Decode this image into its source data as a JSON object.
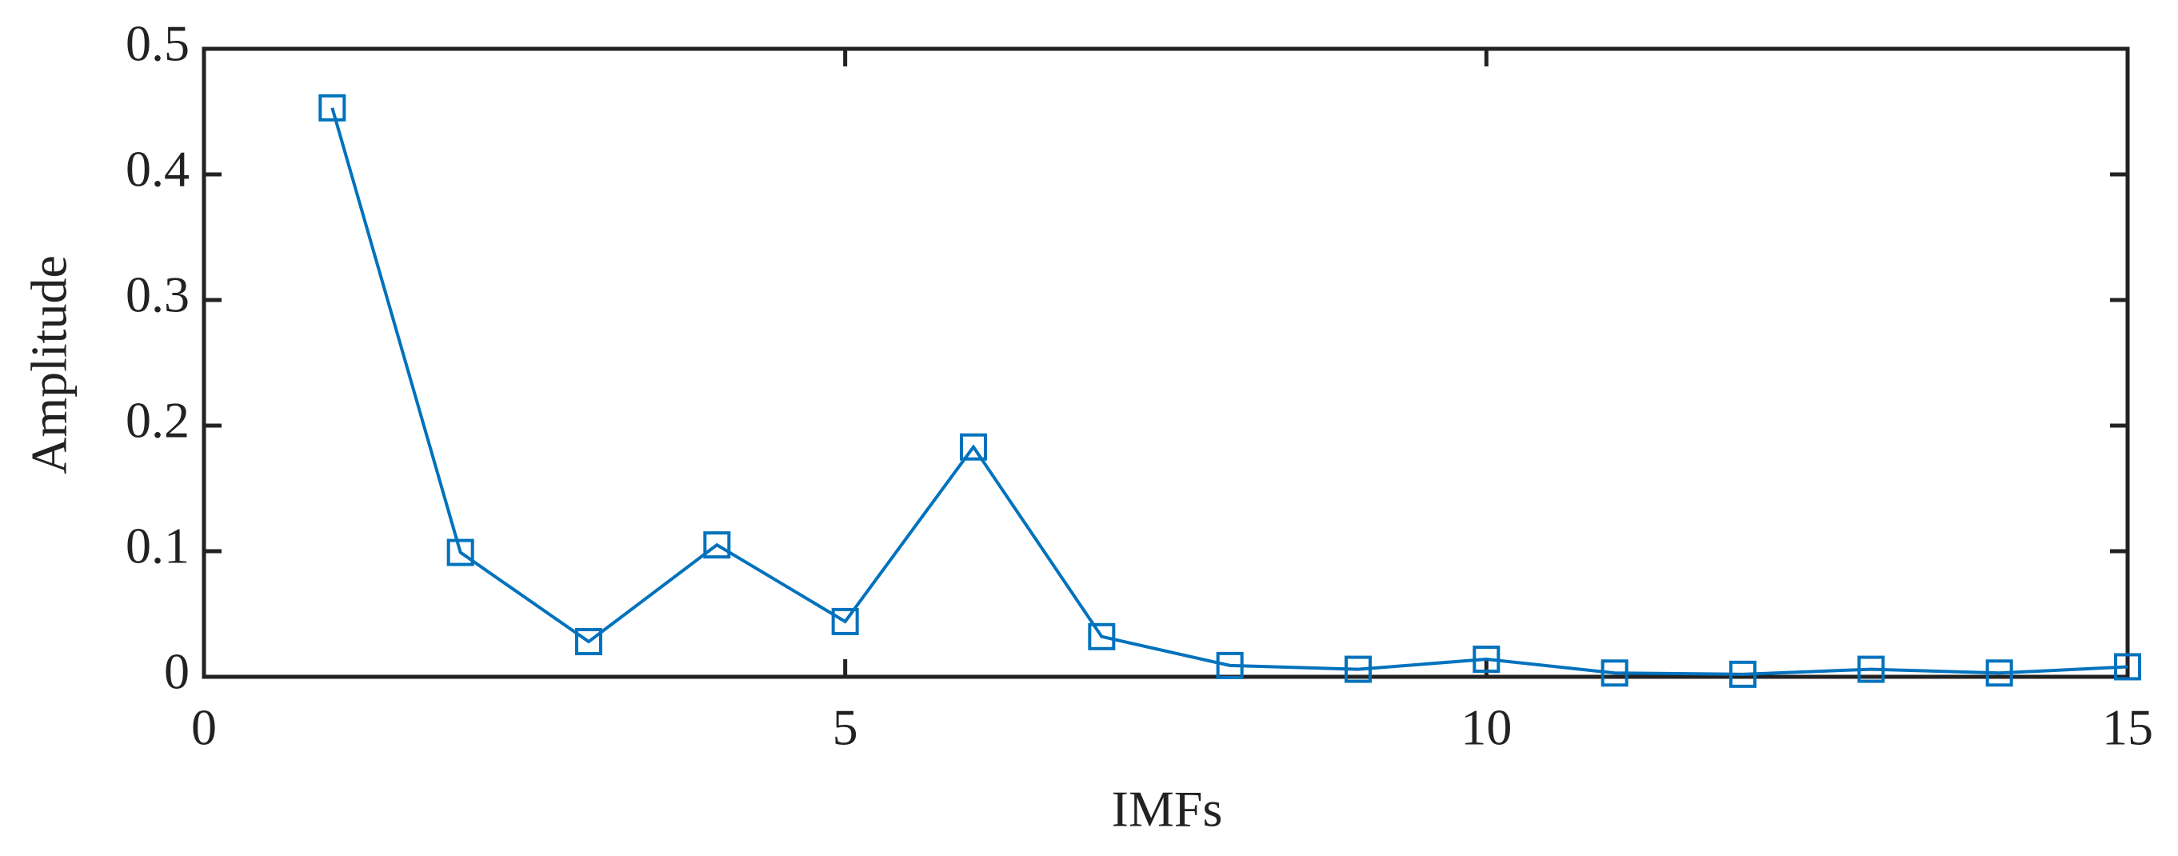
{
  "chart_data": {
    "type": "line",
    "x_label": "IMFs",
    "y_label": "Amplitude",
    "x": [
      1,
      2,
      3,
      4,
      5,
      6,
      7,
      8,
      9,
      10,
      11,
      12,
      13,
      14,
      15
    ],
    "values": [
      0.453,
      0.099,
      0.028,
      0.105,
      0.044,
      0.183,
      0.032,
      0.009,
      0.006,
      0.014,
      0.003,
      0.002,
      0.006,
      0.003,
      0.008
    ],
    "color": "#0072bd",
    "marker": "square",
    "xlim": [
      0,
      15
    ],
    "xticks": [
      0,
      5,
      10,
      15
    ],
    "ylim": [
      0,
      0.5
    ],
    "yticks": [
      0,
      0.1,
      0.2,
      0.3,
      0.4,
      0.5
    ]
  }
}
